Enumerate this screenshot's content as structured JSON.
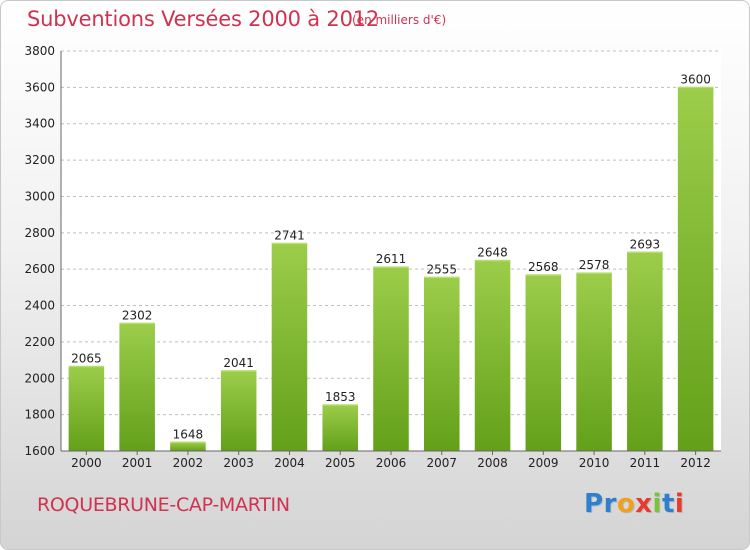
{
  "header": {
    "title": "Subventions Versées 2000 à 2012",
    "subtitle": "(en milliers d'€)"
  },
  "footer": {
    "town": "ROQUEBRUNE-CAP-MARTIN",
    "logo_letters": [
      "P",
      "r",
      "o",
      "x",
      "i",
      "t",
      "i"
    ],
    "logo_colors": [
      "#2f7fd0",
      "#2f7fd0",
      "#f0a020",
      "#e63b2e",
      "#7cc13a",
      "#2f7fd0",
      "#e63b2e"
    ]
  },
  "chart_data": {
    "type": "bar",
    "categories": [
      "2000",
      "2001",
      "2002",
      "2003",
      "2004",
      "2005",
      "2006",
      "2007",
      "2008",
      "2009",
      "2010",
      "2011",
      "2012"
    ],
    "values": [
      2065,
      2302,
      1648,
      2041,
      2741,
      1853,
      2611,
      2555,
      2648,
      2568,
      2578,
      2693,
      3600
    ],
    "ylim": [
      1600,
      3800
    ],
    "yticks": [
      1600,
      1800,
      2000,
      2200,
      2400,
      2600,
      2800,
      3000,
      3200,
      3400,
      3600,
      3800
    ],
    "grid": true,
    "colors": {
      "bar_top": "#9ccd4a",
      "bar_bottom": "#63a019",
      "grid": "#bfbfbf",
      "text": "#222222",
      "accent": "#d0324f"
    }
  }
}
